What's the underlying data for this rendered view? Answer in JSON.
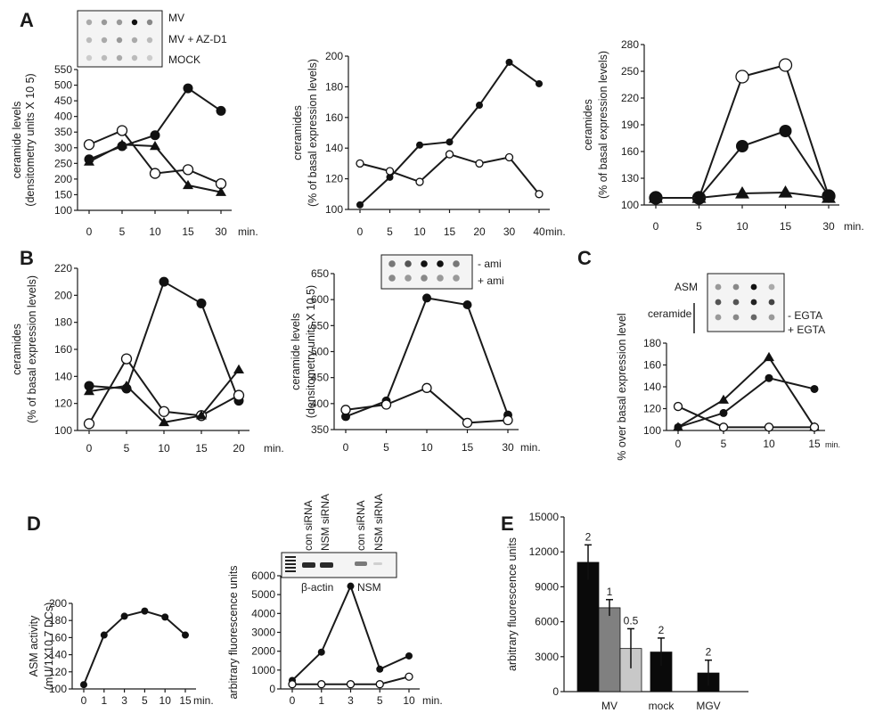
{
  "panel_letters": {
    "A": "A",
    "B": "B",
    "C": "C",
    "D": "D",
    "E": "E"
  },
  "min_label": "min.",
  "blots": {
    "A1": {
      "labels": [
        "MV",
        "MV + AZ-D1",
        "MOCK"
      ]
    },
    "B2": {
      "labels": [
        "- ami",
        "+ ami"
      ]
    },
    "C": {
      "top_label": "ASM",
      "bracket_label": "ceramide",
      "labels": [
        "- EGTA",
        "+ EGTA"
      ]
    },
    "D2": {
      "lane_labels": [
        "con siRNA",
        "NSM siRNA",
        "con siRNA",
        "NSM siRNA"
      ],
      "band_labels": [
        "β-actin",
        "NSM"
      ]
    }
  },
  "chart_data": [
    {
      "id": "A1",
      "type": "line",
      "ylabel": [
        "ceramide levels",
        "(densitometry units X 10 5)"
      ],
      "categories": [
        "0",
        "5",
        "10",
        "15",
        "30"
      ],
      "ylim": [
        100,
        550
      ],
      "yticks": [
        100,
        150,
        200,
        250,
        300,
        350,
        400,
        450,
        500,
        550
      ],
      "series": [
        {
          "marker": "filled-circle",
          "values": [
            263,
            305,
            340,
            490,
            418
          ]
        },
        {
          "marker": "open-circle",
          "values": [
            310,
            355,
            218,
            230,
            185
          ]
        },
        {
          "marker": "triangle",
          "values": [
            255,
            310,
            305,
            180,
            158
          ]
        }
      ]
    },
    {
      "id": "A2",
      "type": "line",
      "ylabel": [
        "creramides",
        "(% of basal expression levels)"
      ],
      "categories": [
        "0",
        "5",
        "10",
        "15",
        "20",
        "30",
        "40"
      ],
      "ylim": [
        100,
        200
      ],
      "yticks": [
        100,
        120,
        140,
        160,
        180,
        200
      ],
      "series": [
        {
          "marker": "filled-circle",
          "values": [
            103,
            121,
            142,
            144,
            168,
            196,
            182
          ]
        },
        {
          "marker": "open-circle",
          "values": [
            130,
            125,
            118,
            136,
            130,
            134,
            110
          ]
        }
      ]
    },
    {
      "id": "A3",
      "type": "line",
      "ylabel": [
        "ceramides",
        "(% of basal expression levels)"
      ],
      "categories": [
        "0",
        "5",
        "10",
        "15",
        "30"
      ],
      "ylim": [
        100,
        280
      ],
      "yticks": [
        100,
        130,
        160,
        190,
        220,
        250,
        280
      ],
      "series": [
        {
          "marker": "open-circle",
          "values": [
            108,
            108,
            244,
            257,
            110
          ]
        },
        {
          "marker": "filled-circle",
          "values": [
            108,
            108,
            166,
            183,
            110
          ]
        },
        {
          "marker": "triangle",
          "values": [
            108,
            108,
            113,
            114,
            108
          ]
        }
      ]
    },
    {
      "id": "B1",
      "type": "line",
      "ylabel": [
        "ceramides",
        "(% of basal expression levels)"
      ],
      "categories": [
        "0",
        "5",
        "10",
        "15",
        "20"
      ],
      "ylim": [
        100,
        220
      ],
      "yticks": [
        100,
        120,
        140,
        160,
        180,
        200,
        220
      ],
      "series": [
        {
          "marker": "filled-circle",
          "values": [
            133,
            131,
            210,
            194,
            122
          ]
        },
        {
          "marker": "open-circle",
          "values": [
            105,
            153,
            114,
            111,
            126
          ]
        },
        {
          "marker": "triangle",
          "values": [
            129,
            133,
            106,
            111,
            145
          ]
        }
      ]
    },
    {
      "id": "B2",
      "type": "line",
      "ylabel": [
        "ceramide levels",
        "(densitometry units X 10 5)"
      ],
      "categories": [
        "0",
        "5",
        "10",
        "15",
        "30"
      ],
      "ylim": [
        350,
        650
      ],
      "yticks": [
        350,
        400,
        450,
        500,
        550,
        600,
        650
      ],
      "series": [
        {
          "marker": "filled-circle",
          "values": [
            375,
            405,
            603,
            590,
            378
          ]
        },
        {
          "marker": "open-circle",
          "values": [
            388,
            398,
            430,
            363,
            368
          ]
        }
      ]
    },
    {
      "id": "C",
      "type": "line",
      "ylabel": [
        "% over basal expression level"
      ],
      "categories": [
        "0",
        "5",
        "10",
        "15"
      ],
      "ylim": [
        100,
        180
      ],
      "yticks": [
        100,
        120,
        140,
        160,
        180
      ],
      "series": [
        {
          "marker": "triangle",
          "values": [
            103,
            128,
            167,
            103
          ]
        },
        {
          "marker": "filled-circle",
          "values": [
            103,
            116,
            148,
            138
          ]
        },
        {
          "marker": "open-circle",
          "values": [
            122,
            103,
            103,
            103
          ]
        }
      ]
    },
    {
      "id": "D1",
      "type": "line",
      "ylabel": [
        "ASM activity",
        "(mU/1X10 7 DCs)"
      ],
      "categories": [
        "0",
        "1",
        "3",
        "5",
        "10",
        "15"
      ],
      "ylim": [
        100,
        200
      ],
      "yticks": [
        100,
        120,
        140,
        160,
        180,
        200
      ],
      "series": [
        {
          "marker": "filled-circle",
          "values": [
            105,
            163,
            185,
            191,
            184,
            163
          ]
        }
      ]
    },
    {
      "id": "D2",
      "type": "line",
      "ylabel": [
        "arbitrary fluorescence units"
      ],
      "categories": [
        "0",
        "1",
        "3",
        "5",
        "10"
      ],
      "ylim": [
        0,
        6000
      ],
      "yticks": [
        0,
        1000,
        2000,
        3000,
        4000,
        5000,
        6000
      ],
      "series": [
        {
          "marker": "filled-circle",
          "values": [
            450,
            1950,
            5450,
            1050,
            1750
          ]
        },
        {
          "marker": "open-circle",
          "values": [
            250,
            250,
            250,
            250,
            650
          ]
        }
      ]
    },
    {
      "id": "E",
      "type": "bar",
      "ylabel": [
        "arbitrary fluorescence units"
      ],
      "categories": [
        "MV",
        "mock",
        "MGV"
      ],
      "ylim": [
        0,
        15000
      ],
      "yticks": [
        0,
        3000,
        6000,
        9000,
        12000,
        15000
      ],
      "bars": [
        {
          "group": 0,
          "slot": 0,
          "value": 11100,
          "error": 1500,
          "label": "2",
          "color": "#0a0a0a"
        },
        {
          "group": 0,
          "slot": 1,
          "value": 7200,
          "error": 700,
          "label": "1",
          "color": "#808080"
        },
        {
          "group": 0,
          "slot": 2,
          "value": 3700,
          "error": 1700,
          "label": "0.5",
          "color": "#c8c8c8"
        },
        {
          "group": 1,
          "slot": 0,
          "value": 3400,
          "error": 1200,
          "label": "2",
          "color": "#0a0a0a"
        },
        {
          "group": 2,
          "slot": 0,
          "value": 1600,
          "error": 1100,
          "label": "2",
          "color": "#0a0a0a"
        }
      ]
    }
  ]
}
